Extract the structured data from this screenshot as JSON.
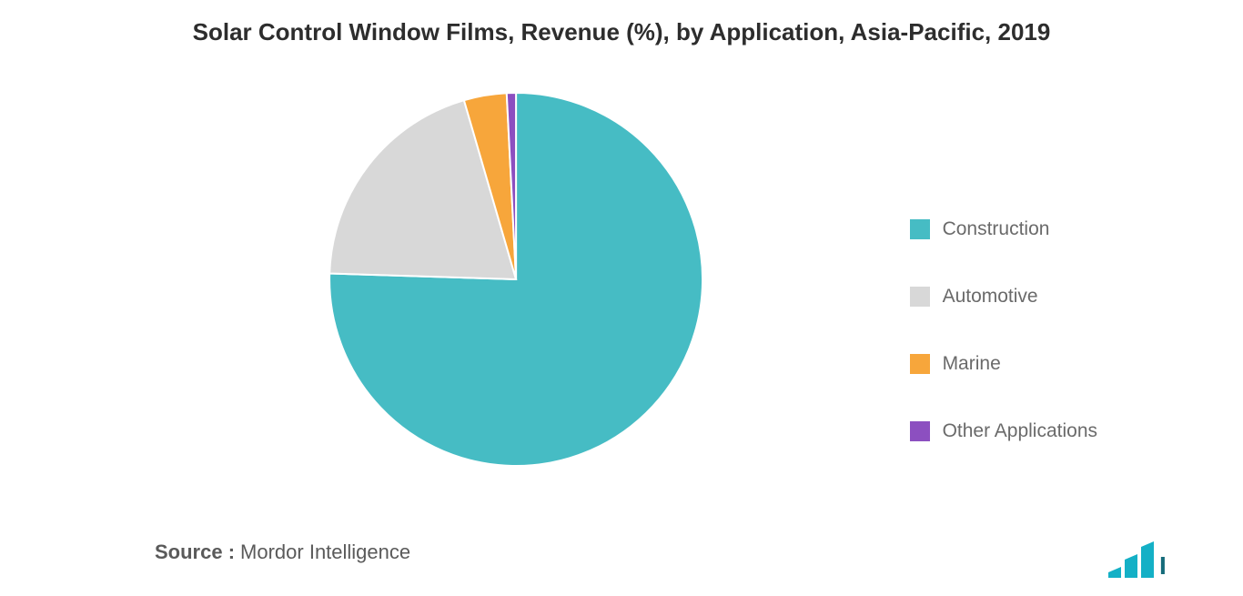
{
  "chart": {
    "type": "pie",
    "title": "Solar Control Window Films, Revenue (%), by Application, Asia-Pacific, 2019",
    "title_fontsize": 26,
    "title_color": "#2d2d2d",
    "background_color": "#ffffff",
    "pie_radius": 205,
    "pie_stroke": "#ffffff",
    "pie_stroke_width": 2,
    "start_angle_deg": 0,
    "slices": [
      {
        "label": "Construction",
        "value": 75.5,
        "color": "#46bcc4"
      },
      {
        "label": "Automotive",
        "value": 20.0,
        "color": "#d8d8d8"
      },
      {
        "label": "Marine",
        "value": 3.7,
        "color": "#f7a63b"
      },
      {
        "label": "Other Applications",
        "value": 0.8,
        "color": "#8c4fc0"
      }
    ],
    "legend": {
      "position": "right",
      "fontsize": 21,
      "text_color": "#6a6a6a",
      "swatch_size": 22
    }
  },
  "footer": {
    "source_label": "Source :",
    "source_value": "Mordor Intelligence",
    "fontsize": 22,
    "color": "#5a5a5a"
  },
  "logo": {
    "bar_color": "#14b0c6",
    "text_color": "#156b7a"
  }
}
